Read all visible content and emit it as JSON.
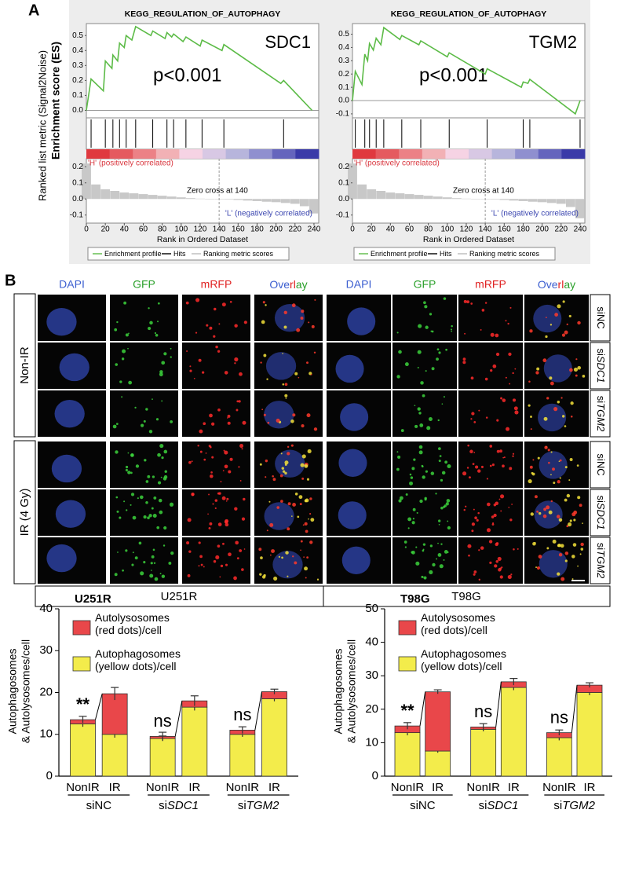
{
  "panel_a": {
    "label": "A",
    "outer_ylabel": "Ranked list metric (Signal2Noise)",
    "inner_ylabel": "Enrichment score (ES)",
    "xlabel": "Rank in Ordered Dataset",
    "legend": [
      "Enrichment profile",
      "Hits",
      "Ranking metric scores"
    ],
    "h_label": "'H' (positively correlated)",
    "l_label": "'L' (negatively correlated)",
    "xlim": [
      0,
      245
    ],
    "xticks": [
      0,
      20,
      40,
      60,
      80,
      100,
      120,
      140,
      160,
      180,
      200,
      220,
      240
    ],
    "metric_ylim": [
      -0.15,
      0.25
    ],
    "metric_yticks": [
      0.2,
      0.1,
      {
        "value": 0,
        "label": "0.0"
      },
      -0.1
    ],
    "plots": [
      {
        "type": "line",
        "title": "KEGG_REGULATION_OF_AUTOPHAGY",
        "gene": "SDC1",
        "p_value": "p<0.001",
        "zero_cross": "Zero cross at 140",
        "ylim": [
          -0.05,
          0.58
        ],
        "yticks": [
          0.5,
          0.4,
          0.3,
          0.2,
          0.1,
          {
            "value": 0,
            "label": "0.0"
          }
        ],
        "x": [
          0,
          5,
          18,
          20,
          27,
          28,
          33,
          35,
          40,
          42,
          48,
          52,
          68,
          70,
          83,
          85,
          90,
          92,
          102,
          105,
          120,
          122,
          143,
          145,
          205,
          208,
          238
        ],
        "es": [
          0,
          0.21,
          0.13,
          0.33,
          0.28,
          0.37,
          0.33,
          0.45,
          0.42,
          0.5,
          0.47,
          0.56,
          0.5,
          0.53,
          0.48,
          0.52,
          0.49,
          0.51,
          0.46,
          0.49,
          0.43,
          0.47,
          0.4,
          0.44,
          0.18,
          0.2,
          0
        ],
        "hits": [
          5,
          20,
          28,
          35,
          42,
          52,
          70,
          85,
          92,
          105,
          122,
          145,
          208
        ],
        "metric_x": [
          0,
          10,
          20,
          30,
          40,
          50,
          60,
          70,
          80,
          90,
          100,
          110,
          120,
          130,
          140,
          150,
          160,
          170,
          180,
          190,
          200,
          210,
          220,
          230,
          240
        ],
        "metric": [
          0.22,
          0.09,
          0.06,
          0.05,
          0.04,
          0.035,
          0.03,
          0.025,
          0.02,
          0.015,
          0.01,
          0.005,
          0.002,
          0.001,
          0,
          -0.003,
          -0.006,
          -0.01,
          -0.013,
          -0.017,
          -0.02,
          -0.025,
          -0.03,
          -0.045,
          -0.09
        ]
      },
      {
        "type": "line",
        "title": "KEGG_REGULATION_OF_AUTOPHAGY",
        "gene": "TGM2",
        "p_value": "p<0.001",
        "zero_cross": "Zero cross at 140",
        "ylim": [
          -0.13,
          0.58
        ],
        "yticks": [
          0.5,
          0.4,
          0.3,
          0.2,
          0.1,
          {
            "value": 0,
            "label": "0.0"
          },
          -0.1
        ],
        "x": [
          0,
          3,
          10,
          13,
          16,
          18,
          22,
          25,
          30,
          33,
          50,
          52,
          70,
          72,
          100,
          102,
          140,
          142,
          178,
          180,
          185,
          187,
          235,
          240
        ],
        "es": [
          0,
          0.22,
          0.12,
          0.35,
          0.3,
          0.43,
          0.38,
          0.47,
          0.42,
          0.55,
          0.46,
          0.49,
          0.42,
          0.45,
          0.33,
          0.36,
          0.2,
          0.24,
          0.1,
          0.14,
          0.13,
          0.16,
          -0.1,
          0
        ],
        "hits": [
          3,
          13,
          18,
          25,
          33,
          52,
          72,
          102,
          142,
          180,
          187,
          240
        ],
        "metric_x": [
          0,
          10,
          20,
          30,
          40,
          50,
          60,
          70,
          80,
          90,
          100,
          110,
          120,
          130,
          140,
          150,
          160,
          170,
          180,
          190,
          200,
          210,
          220,
          230,
          240
        ],
        "metric": [
          0.22,
          0.09,
          0.06,
          0.05,
          0.04,
          0.035,
          0.03,
          0.025,
          0.02,
          0.015,
          0.01,
          0.005,
          0.002,
          0.001,
          0,
          -0.003,
          -0.006,
          -0.01,
          -0.013,
          -0.017,
          -0.02,
          -0.025,
          -0.03,
          -0.05,
          -0.12
        ]
      }
    ]
  },
  "panel_b": {
    "label": "B",
    "columns": [
      "DAPI",
      "GFP",
      "mRFP"
    ],
    "overlay": [
      "Ove",
      "rl",
      "ay"
    ],
    "conditions": [
      "Non-IR",
      "IR (4 Gy)"
    ],
    "sirnas": [
      [
        "si",
        "NC"
      ],
      [
        "si",
        "SDC1"
      ],
      [
        "si",
        "TGM2"
      ]
    ],
    "cell_lines": [
      "U251R",
      "T98G"
    ]
  },
  "panel_c": {
    "charts": [
      {
        "type": "stacked_bar",
        "title": "U251R",
        "ylabel": [
          "Autophagosomes",
          "& Autolysosomes/cell"
        ],
        "categories": [
          "NonIR",
          "IR",
          "NonIR",
          "IR",
          "NonIR",
          "IR"
        ],
        "groups": [
          [
            "si",
            "NC"
          ],
          [
            "si",
            "SDC1"
          ],
          [
            "si",
            "TGM2"
          ]
        ],
        "ylim": [
          0,
          40
        ],
        "yticks": [
          0,
          10,
          20,
          30,
          40
        ],
        "series": [
          {
            "name": "Autophagosomes (yellow dots)/cell",
            "color": "#f3ec4b",
            "values": [
              12.5,
              10,
              9,
              16.5,
              10,
              18.5
            ],
            "errors": [
              0.7,
              0.8,
              0.6,
              0.8,
              0.6,
              0.6
            ]
          },
          {
            "name": "Autolysosomes (red dots)/cell",
            "color": "#e9474a",
            "values": [
              1,
              9.7,
              0.5,
              1.5,
              1,
              1.7
            ],
            "errors": [
              0.8,
              1.5,
              1,
              1.2,
              0.8,
              0.6
            ]
          }
        ],
        "annotations": [
          "**",
          "ns",
          "ns"
        ]
      },
      {
        "type": "stacked_bar",
        "title": "T98G",
        "ylabel": [
          "Autophagosomes",
          "& Autolysosomes/cell"
        ],
        "categories": [
          "NonIR",
          "IR",
          "NonIR",
          "IR",
          "NonIR",
          "IR"
        ],
        "groups": [
          [
            "si",
            "NC"
          ],
          [
            "si",
            "SDC1"
          ],
          [
            "si",
            "TGM2"
          ]
        ],
        "ylim": [
          0,
          50
        ],
        "yticks": [
          0,
          10,
          20,
          30,
          40,
          50
        ],
        "series": [
          {
            "name": "Autophagosomes (yellow dots)/cell",
            "color": "#f3ec4b",
            "values": [
              13,
              7.5,
              14,
              26.5,
              11.5,
              25
            ],
            "errors": [
              0.8,
              0.5,
              0.6,
              0.8,
              0.8,
              0.8
            ]
          },
          {
            "name": "Autolysosomes (red dots)/cell",
            "color": "#e9474a",
            "values": [
              2,
              17.7,
              0.7,
              1.7,
              1.5,
              2.2
            ],
            "errors": [
              1,
              0.6,
              1,
              1,
              0.8,
              0.7
            ]
          }
        ],
        "annotations": [
          "**",
          "ns",
          "ns"
        ]
      }
    ]
  }
}
